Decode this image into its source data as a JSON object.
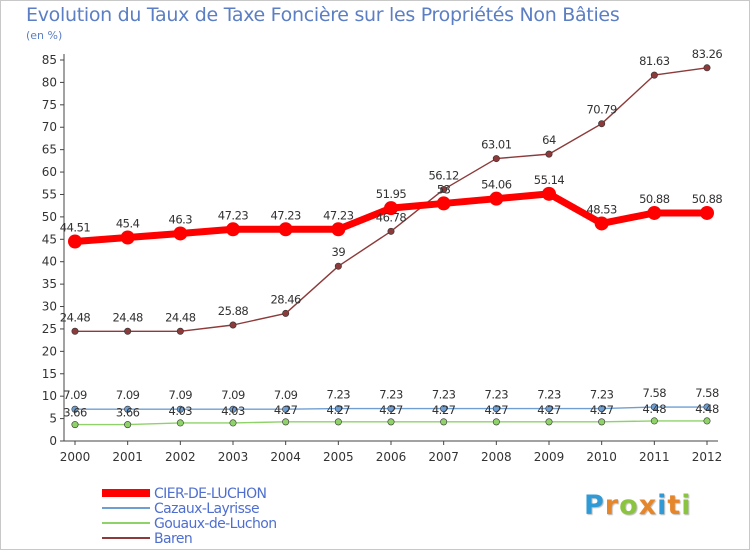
{
  "title": "Evolution du Taux de Taxe Foncière sur les Propriétés Non Bâties",
  "unit_label": "(en %)",
  "logo": {
    "letters": [
      "P",
      "r",
      "o",
      "x",
      "i",
      "t",
      "i"
    ],
    "colors": [
      "#2f9ad6",
      "#e6862a",
      "#8bc53f",
      "#e6862a",
      "#2f9ad6",
      "#e6862a",
      "#8bc53f"
    ]
  },
  "chart_data": {
    "type": "line",
    "title": "Evolution du Taux de Taxe Foncière sur les Propriétés Non Bâties",
    "ylabel": "(en %)",
    "ylim": [
      0,
      85
    ],
    "yticks": [
      0,
      5,
      10,
      15,
      20,
      25,
      30,
      35,
      40,
      45,
      50,
      55,
      60,
      65,
      70,
      75,
      80,
      85
    ],
    "grid": false,
    "legend_position": "bottom-left",
    "x": [
      "2000",
      "2001",
      "2002",
      "2003",
      "2004",
      "2005",
      "2006",
      "2007",
      "2008",
      "2009",
      "2010",
      "2011",
      "2012"
    ],
    "series": [
      {
        "name": "CIER-DE-LUCHON",
        "color": "#ff0000",
        "values": [
          44.51,
          45.4,
          46.3,
          47.23,
          47.23,
          47.23,
          51.95,
          53,
          54.06,
          55.14,
          48.53,
          50.88,
          50.88
        ],
        "labels": [
          "44.51",
          "45.4",
          "46.3",
          "47.23",
          "47.23",
          "47.23",
          "51.95",
          "53",
          "54.06",
          "55.14",
          "48.53",
          "50.88",
          "50.88"
        ]
      },
      {
        "name": "Cazaux-Layrisse",
        "color": "#6f9fd2",
        "values": [
          7.09,
          7.09,
          7.09,
          7.09,
          7.09,
          7.23,
          7.23,
          7.23,
          7.23,
          7.23,
          7.23,
          7.58,
          7.58
        ],
        "labels": [
          "7.09",
          "7.09",
          "7.09",
          "7.09",
          "7.09",
          "7.23",
          "7.23",
          "7.23",
          "7.23",
          "7.23",
          "7.23",
          "7.58",
          "7.58"
        ]
      },
      {
        "name": "Gouaux-de-Luchon",
        "color": "#8fd26a",
        "values": [
          3.66,
          3.66,
          4.03,
          4.03,
          4.27,
          4.27,
          4.27,
          4.27,
          4.27,
          4.27,
          4.27,
          4.48,
          4.48
        ],
        "labels": [
          "3.66",
          "3.66",
          "4.03",
          "4.03",
          "4.27",
          "4.27",
          "4.27",
          "4.27",
          "4.27",
          "4.27",
          "4.27",
          "4.48",
          "4.48"
        ]
      },
      {
        "name": "Baren",
        "color": "#8c3a3a",
        "values": [
          24.48,
          24.48,
          24.48,
          25.88,
          28.46,
          39,
          46.78,
          56.12,
          63.01,
          64,
          70.79,
          81.63,
          83.26
        ],
        "labels": [
          "24.48",
          "24.48",
          "24.48",
          "25.88",
          "28.46",
          "39",
          "46.78",
          "56.12",
          "63.01",
          "64",
          "70.79",
          "81.63",
          "83.26"
        ]
      }
    ]
  }
}
